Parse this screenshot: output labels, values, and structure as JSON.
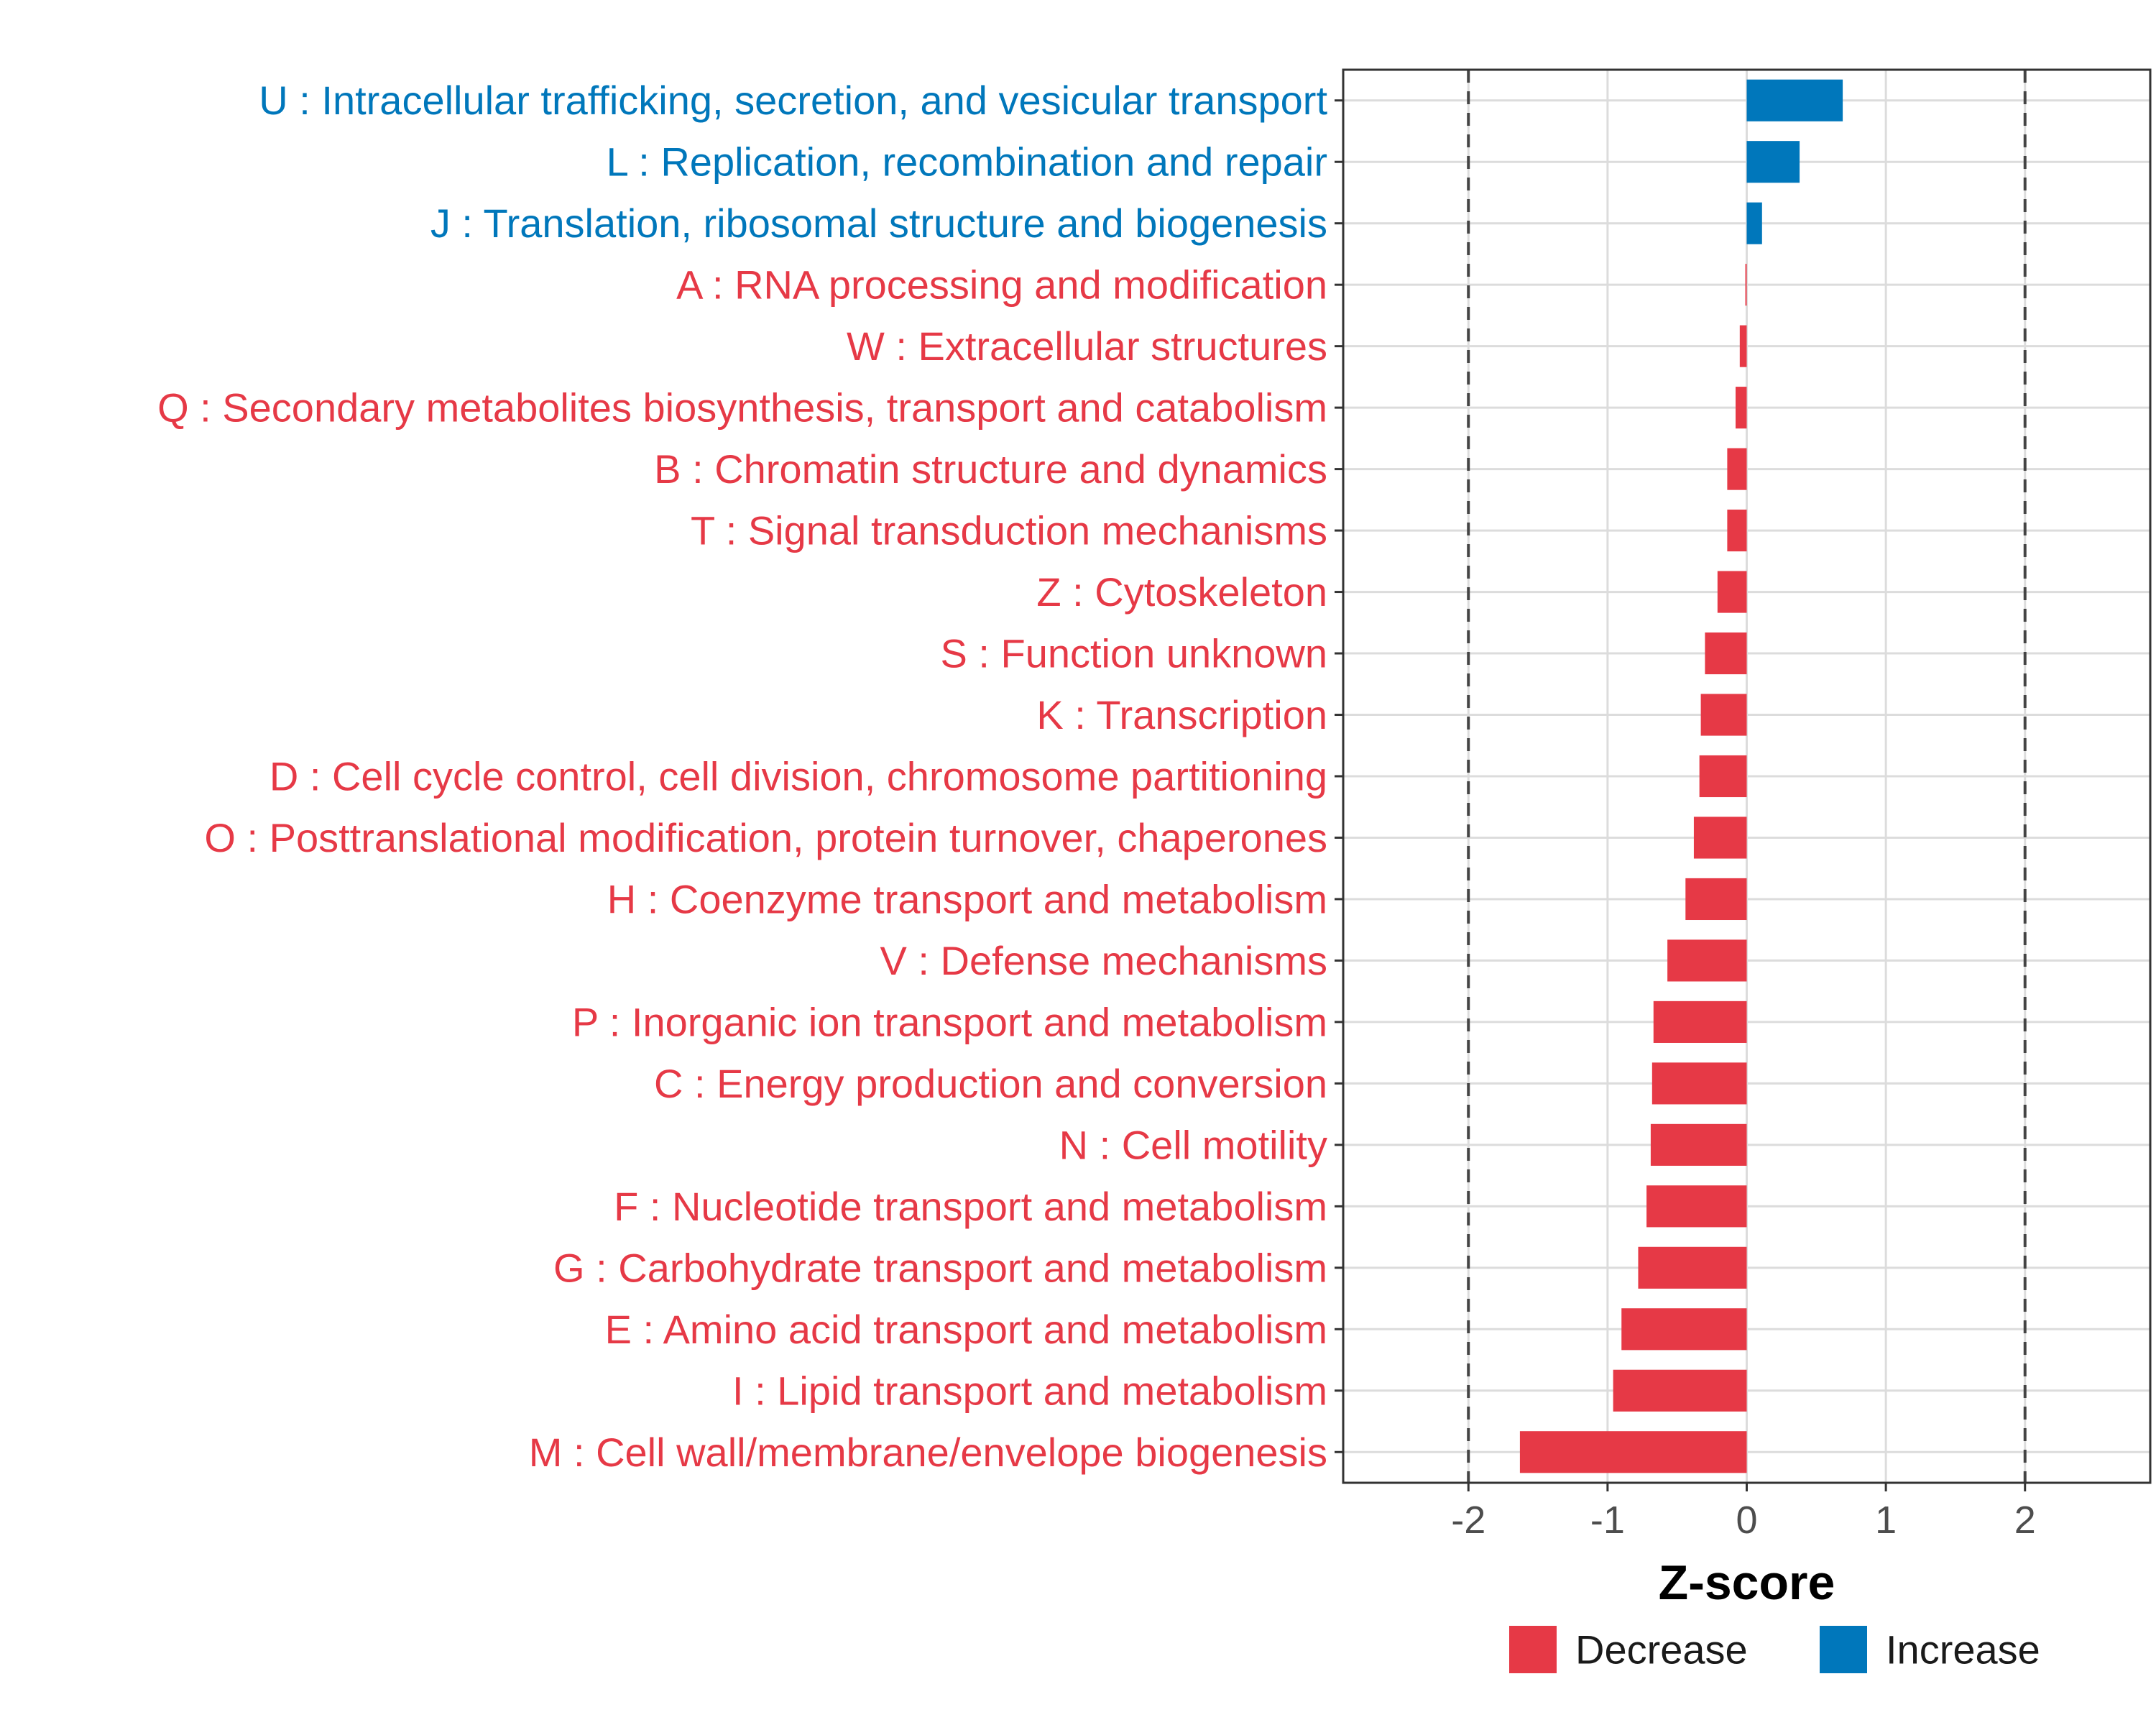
{
  "chart_data": {
    "type": "bar",
    "orientation": "horizontal",
    "xlabel": "Z-score",
    "xlim": [
      -2.9,
      2.9
    ],
    "xticks": [
      -2,
      -1,
      0,
      1,
      2
    ],
    "xtick_labels": [
      "-2",
      "-1",
      "0",
      "1",
      "2"
    ],
    "reference_lines": [
      -2,
      2
    ],
    "grid": true,
    "legend_position": "bottom",
    "legend": [
      {
        "name": "Decrease",
        "color": "#E63946"
      },
      {
        "name": "Increase",
        "color": "#0077BB"
      }
    ],
    "categories": [
      "U : Intracellular trafficking, secretion, and vesicular transport",
      "L : Replication, recombination and repair",
      "J : Translation, ribosomal structure and biogenesis",
      "A : RNA processing and modification",
      "W : Extracellular structures",
      "Q : Secondary metabolites biosynthesis, transport and catabolism",
      "B : Chromatin structure and dynamics",
      "T : Signal transduction mechanisms",
      "Z : Cytoskeleton",
      "S : Function unknown",
      "K : Transcription",
      "D : Cell cycle control, cell division, chromosome partitioning",
      "O : Posttranslational modification, protein turnover, chaperones",
      "H : Coenzyme transport and metabolism",
      "V : Defense mechanisms",
      "P : Inorganic ion transport and metabolism",
      "C : Energy production and conversion",
      "N : Cell motility",
      "F : Nucleotide transport and metabolism",
      "G : Carbohydrate transport and metabolism",
      "E : Amino acid transport and metabolism",
      "I : Lipid transport and metabolism",
      "M : Cell wall/membrane/envelope biogenesis"
    ],
    "values": [
      0.69,
      0.38,
      0.11,
      -0.01,
      -0.05,
      -0.08,
      -0.14,
      -0.14,
      -0.21,
      -0.3,
      -0.33,
      -0.34,
      -0.38,
      -0.44,
      -0.57,
      -0.67,
      -0.68,
      -0.69,
      -0.72,
      -0.78,
      -0.9,
      -0.96,
      -1.63
    ],
    "groups": [
      "Increase",
      "Increase",
      "Increase",
      "Decrease",
      "Decrease",
      "Decrease",
      "Decrease",
      "Decrease",
      "Decrease",
      "Decrease",
      "Decrease",
      "Decrease",
      "Decrease",
      "Decrease",
      "Decrease",
      "Decrease",
      "Decrease",
      "Decrease",
      "Decrease",
      "Decrease",
      "Decrease",
      "Decrease",
      "Decrease"
    ]
  }
}
